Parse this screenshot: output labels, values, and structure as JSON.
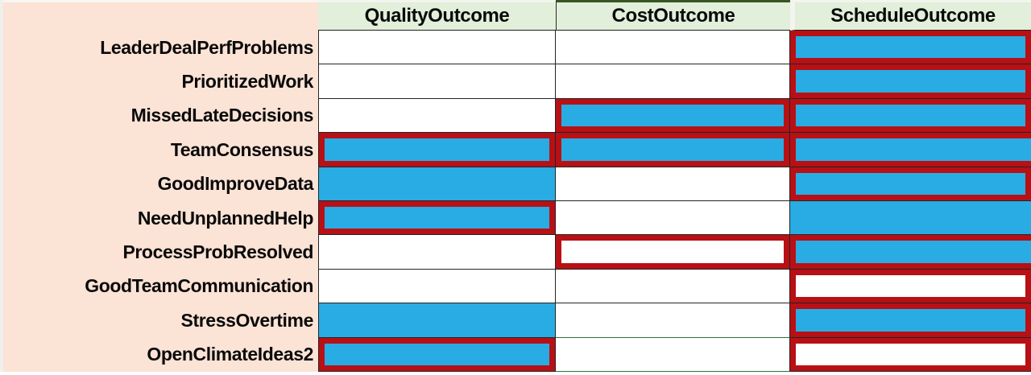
{
  "chart_data": {
    "type": "heatmap",
    "columns": [
      "QualityOutcome",
      "CostOutcome",
      "ScheduleOutcome"
    ],
    "rows": [
      "LeaderDealPerfProblems",
      "PrioritizedWork",
      "MissedLateDecisions",
      "TeamConsensus",
      "GoodImproveData",
      "NeedUnplannedHelp",
      "ProcessProbResolved",
      "GoodTeamCommunication",
      "StressOvertime",
      "OpenClimateIdeas2"
    ],
    "cell_filled": [
      [
        0,
        0,
        1
      ],
      [
        0,
        0,
        1
      ],
      [
        0,
        1,
        1
      ],
      [
        1,
        1,
        1
      ],
      [
        1,
        0,
        1
      ],
      [
        1,
        0,
        1
      ],
      [
        0,
        0,
        1
      ],
      [
        0,
        0,
        0
      ],
      [
        1,
        0,
        1
      ],
      [
        1,
        0,
        0
      ]
    ],
    "cell_red_outlined": [
      [
        0,
        0,
        1
      ],
      [
        0,
        0,
        1
      ],
      [
        0,
        1,
        1
      ],
      [
        1,
        1,
        1
      ],
      [
        0,
        0,
        1
      ],
      [
        1,
        0,
        0
      ],
      [
        0,
        1,
        1
      ],
      [
        0,
        0,
        1
      ],
      [
        0,
        0,
        1
      ],
      [
        1,
        0,
        1
      ]
    ]
  },
  "layout_flags": {
    "bleed_right_cells": [
      [
        3,
        2
      ],
      [
        6,
        2
      ]
    ],
    "green_gridline_cells": [
      [
        8,
        1
      ],
      [
        9,
        1
      ]
    ]
  },
  "colors": {
    "blue": "#29ace3",
    "red": "#b8101ا5",
    "peach": "#fbe3d6",
    "header_green": "#e2efda",
    "dark_green": "#375623",
    "grid_green": "#2e7039"
  }
}
